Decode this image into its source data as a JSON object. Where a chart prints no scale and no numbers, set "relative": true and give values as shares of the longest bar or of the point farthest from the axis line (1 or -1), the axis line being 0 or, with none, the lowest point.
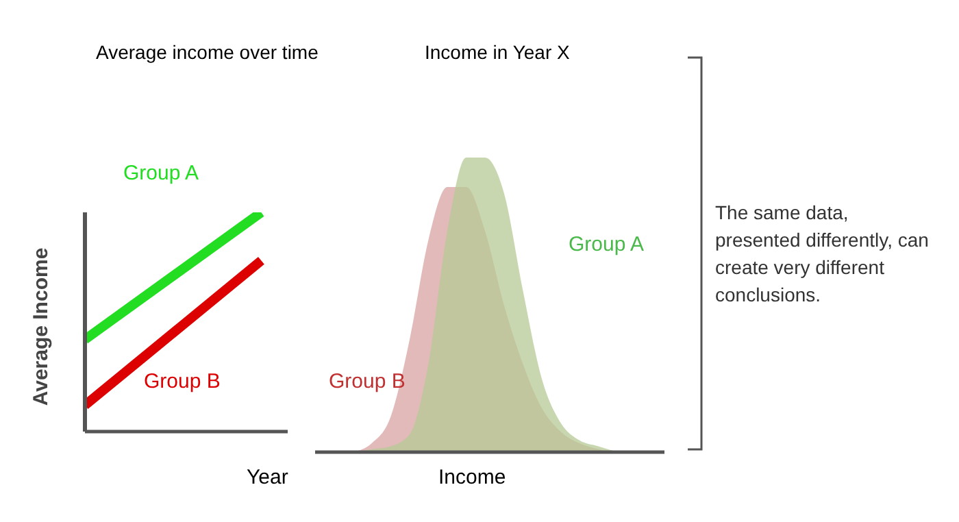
{
  "chart_data": [
    {
      "type": "line",
      "title": "Average income over time",
      "xlabel": "Year",
      "ylabel": "Average Income",
      "relative": true,
      "categories": [
        null,
        null
      ],
      "line_style": "solid",
      "series": [
        {
          "name": "Group A",
          "color": "#22dd22",
          "values": [
            0.42,
            1
          ]
        },
        {
          "name": "Group B",
          "color": "#dd0000",
          "values": [
            0.12,
            0.78
          ]
        }
      ]
    },
    {
      "type": "area",
      "title": "Income in Year X",
      "xlabel": "Income",
      "relative": true,
      "categories": [
        null,
        null,
        null,
        null,
        null,
        null,
        null,
        null,
        null,
        null,
        null,
        null,
        null,
        null,
        null
      ],
      "series": [
        {
          "name": "Group B",
          "color": "#d9a3a3",
          "values": [
            0,
            0.03,
            0.12,
            0.38,
            0.72,
            0.9,
            0.9,
            0.75,
            0.5,
            0.3,
            0.15,
            0.07,
            0.03,
            0.01,
            0
          ]
        },
        {
          "name": "Group A",
          "color": "#b5c996",
          "values": [
            0,
            0.01,
            0.02,
            0.06,
            0.3,
            0.75,
            1,
            1,
            0.88,
            0.55,
            0.25,
            0.1,
            0.04,
            0.02,
            0
          ]
        }
      ]
    },
    {
      "type": "other",
      "annotations": [
        "The same data, presented differently, can create very different conclusions."
      ]
    }
  ]
}
